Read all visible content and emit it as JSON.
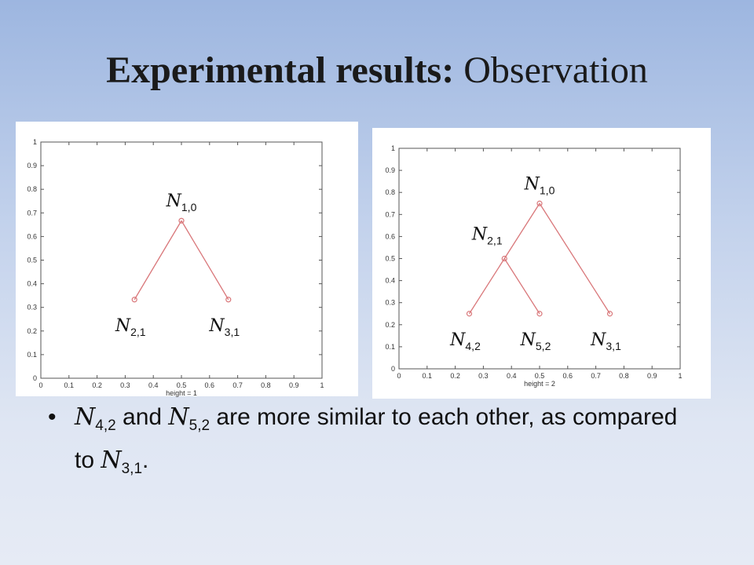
{
  "title": {
    "bold": "Experimental results:",
    "rest": "Observation"
  },
  "bullet": [
    {
      "main": "N",
      "sub": "4,2"
    },
    {
      "text": " and "
    },
    {
      "main": "N",
      "sub": "5,2"
    },
    {
      "text": " are more similar to each other, as compared to "
    },
    {
      "main": "N",
      "sub": "3,1"
    },
    {
      "text": "."
    }
  ],
  "chart_data": [
    {
      "type": "tree",
      "xlabel": "height = 1",
      "color": "#d9777a",
      "xlim": [
        0,
        1
      ],
      "ylim": [
        0,
        1
      ],
      "xticks": [
        0,
        0.1,
        0.2,
        0.3,
        0.4,
        0.5,
        0.6,
        0.7,
        0.8,
        0.9,
        1
      ],
      "yticks": [
        0,
        0.1,
        0.2,
        0.3,
        0.4,
        0.5,
        0.6,
        0.7,
        0.8,
        0.9,
        1
      ],
      "x": [
        0.5,
        0.333,
        0.667
      ],
      "values": [
        0.667,
        0.333,
        0.333
      ],
      "parents": [
        null,
        0,
        0
      ],
      "labels": [
        {
          "main": "N",
          "sub": "1,0"
        },
        {
          "main": "N",
          "sub": "2,1"
        },
        {
          "main": "N",
          "sub": "3,1"
        }
      ]
    },
    {
      "type": "tree",
      "xlabel": "height = 2",
      "color": "#d9777a",
      "xlim": [
        0,
        1
      ],
      "ylim": [
        0,
        1
      ],
      "xticks": [
        0,
        0.1,
        0.2,
        0.3,
        0.4,
        0.5,
        0.6,
        0.7,
        0.8,
        0.9,
        1
      ],
      "yticks": [
        0,
        0.1,
        0.2,
        0.3,
        0.4,
        0.5,
        0.6,
        0.7,
        0.8,
        0.9,
        1
      ],
      "x": [
        0.5,
        0.375,
        0.25,
        0.5,
        0.75
      ],
      "values": [
        0.75,
        0.5,
        0.25,
        0.25,
        0.25
      ],
      "parents": [
        null,
        0,
        1,
        1,
        0
      ],
      "labels": [
        {
          "main": "N",
          "sub": "1,0"
        },
        {
          "main": "N",
          "sub": "2,1"
        },
        {
          "main": "N",
          "sub": "4,2"
        },
        {
          "main": "N",
          "sub": "5,2"
        },
        {
          "main": "N",
          "sub": "3,1"
        }
      ]
    }
  ]
}
